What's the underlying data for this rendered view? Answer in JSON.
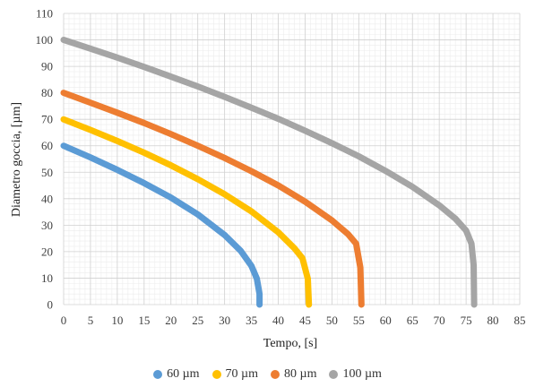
{
  "chart_data": {
    "type": "line",
    "xlabel": "Tempo, [s]",
    "ylabel": "Diametro goccia, [µm]",
    "xlim": [
      0,
      85
    ],
    "ylim": [
      0,
      110
    ],
    "xticks": [
      0,
      5,
      10,
      15,
      20,
      25,
      30,
      35,
      40,
      45,
      50,
      55,
      60,
      65,
      70,
      75,
      80,
      85
    ],
    "yticks": [
      0,
      10,
      20,
      30,
      40,
      50,
      60,
      70,
      80,
      90,
      100,
      110
    ],
    "grid": true,
    "legend_position": "bottom",
    "series": [
      {
        "name": "60 µm",
        "color": "#5B9BD5",
        "x": [
          0,
          5,
          10,
          15,
          20,
          25,
          30,
          33,
          35,
          36,
          36.5,
          36.5
        ],
        "y": [
          60,
          55.6,
          50.9,
          45.9,
          40.4,
          34.1,
          26.3,
          20.3,
          14.6,
          9.8,
          4,
          0
        ]
      },
      {
        "name": "70 µm",
        "color": "#FFC000",
        "x": [
          0,
          5,
          10,
          15,
          20,
          25,
          30,
          35,
          40,
          43,
          44.5,
          45.5,
          45.7
        ],
        "y": [
          70,
          66,
          61.8,
          57.4,
          52.6,
          47.4,
          41.7,
          35.2,
          27.3,
          21.3,
          17.5,
          9.7,
          0
        ]
      },
      {
        "name": "80 µm",
        "color": "#ED7D31",
        "x": [
          0,
          5,
          10,
          15,
          20,
          25,
          30,
          35,
          40,
          45,
          50,
          53,
          54.5,
          55.3,
          55.5
        ],
        "y": [
          80,
          76.3,
          72.5,
          68.6,
          64.4,
          60,
          55.4,
          50.4,
          45,
          38.9,
          31.8,
          26.6,
          23,
          14,
          0
        ]
      },
      {
        "name": "100 µm",
        "color": "#A5A5A5",
        "x": [
          0,
          5,
          10,
          15,
          20,
          25,
          30,
          35,
          40,
          45,
          50,
          55,
          60,
          65,
          70,
          73,
          75,
          76,
          76.4,
          76.5
        ],
        "y": [
          100,
          96.7,
          93.3,
          89.8,
          86.1,
          82.4,
          78.5,
          74.4,
          70.2,
          65.7,
          61,
          56,
          50.5,
          44.5,
          37.5,
          32.5,
          28,
          23,
          15,
          0
        ]
      }
    ]
  }
}
